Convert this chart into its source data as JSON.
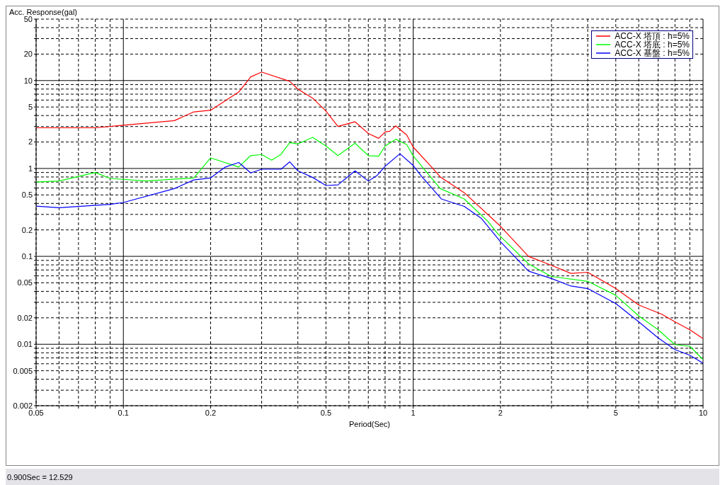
{
  "chart_data": {
    "type": "line",
    "xlabel": "Period(Sec)",
    "ylabel": "Acc. Response(gal)",
    "log": "xy",
    "grid": true,
    "legend": "top right",
    "xlim": [
      0.05,
      10
    ],
    "ylim": [
      0.002,
      50
    ],
    "xticks": [
      0.05,
      {
        "value": 0.06,
        "label": null
      },
      {
        "value": 0.07,
        "label": null
      },
      {
        "value": 0.08,
        "label": null
      },
      {
        "value": 0.09,
        "label": null
      },
      0.1,
      0.2,
      {
        "value": 0.3,
        "label": null
      },
      {
        "value": 0.4,
        "label": null
      },
      0.5,
      {
        "value": 0.6,
        "label": null
      },
      {
        "value": 0.7,
        "label": null
      },
      {
        "value": 0.8,
        "label": null
      },
      {
        "value": 0.9,
        "label": null
      },
      1,
      2,
      {
        "value": 3,
        "label": null
      },
      {
        "value": 4,
        "label": null
      },
      5,
      {
        "value": 6,
        "label": null
      },
      {
        "value": 7,
        "label": null
      },
      {
        "value": 8,
        "label": null
      },
      {
        "value": 9,
        "label": null
      },
      10
    ],
    "yticks": [
      0.002,
      {
        "value": 0.003,
        "label": null
      },
      {
        "value": 0.004,
        "label": null
      },
      0.005,
      {
        "value": 0.006,
        "label": null
      },
      {
        "value": 0.007,
        "label": null
      },
      {
        "value": 0.008,
        "label": null
      },
      {
        "value": 0.009,
        "label": null
      },
      0.01,
      0.02,
      {
        "value": 0.03,
        "label": null
      },
      {
        "value": 0.04,
        "label": null
      },
      0.05,
      {
        "value": 0.06,
        "label": null
      },
      {
        "value": 0.07,
        "label": null
      },
      {
        "value": 0.08,
        "label": null
      },
      {
        "value": 0.09,
        "label": null
      },
      0.1,
      0.2,
      {
        "value": 0.3,
        "label": null
      },
      {
        "value": 0.4,
        "label": null
      },
      0.5,
      {
        "value": 0.6,
        "label": null
      },
      {
        "value": 0.7,
        "label": null
      },
      {
        "value": 0.8,
        "label": null
      },
      {
        "value": 0.9,
        "label": null
      },
      1,
      2,
      {
        "value": 3,
        "label": null
      },
      {
        "value": 4,
        "label": null
      },
      5,
      {
        "value": 6,
        "label": null
      },
      {
        "value": 7,
        "label": null
      },
      {
        "value": 8,
        "label": null
      },
      {
        "value": 9,
        "label": null
      },
      10,
      20,
      {
        "value": 30,
        "label": null
      },
      {
        "value": 40,
        "label": null
      },
      50
    ],
    "annotations": [
      "0.900Sec = 12.529"
    ],
    "series": [
      {
        "name": "ACC-X 塔頂 : h=5%",
        "color": "#ff0000",
        "x": [
          0.05,
          0.08,
          0.1,
          0.15,
          0.175,
          0.2,
          0.25,
          0.275,
          0.3,
          0.375,
          0.4,
          0.45,
          0.5,
          0.55,
          0.63,
          0.7,
          0.76,
          0.8,
          0.83,
          0.87,
          0.95,
          1.0,
          1.16,
          1.24,
          1.5,
          2.0,
          2.5,
          3,
          3.5,
          4,
          5,
          6,
          7.2,
          8,
          9,
          10
        ],
        "values": [
          2.9,
          2.9,
          3.1,
          3.5,
          4.4,
          4.6,
          7.4,
          11,
          12.5,
          9.8,
          8.0,
          6.3,
          4.5,
          3.0,
          3.4,
          2.5,
          2.2,
          2.6,
          2.65,
          3.05,
          2.4,
          1.75,
          1.03,
          0.8,
          0.53,
          0.22,
          0.1,
          0.079,
          0.064,
          0.066,
          0.043,
          0.028,
          0.022,
          0.018,
          0.0146,
          0.0116
        ]
      },
      {
        "name": "ACC-X 塔底 : h=5%",
        "color": "#00ff00",
        "x": [
          0.05,
          0.06,
          0.08,
          0.09,
          0.12,
          0.175,
          0.2,
          0.25,
          0.275,
          0.3,
          0.325,
          0.35,
          0.375,
          0.4,
          0.45,
          0.5,
          0.55,
          0.63,
          0.7,
          0.76,
          0.8,
          0.87,
          0.95,
          1.0,
          1.07,
          1.24,
          1.5,
          1.81,
          1.96,
          2.5,
          3,
          4,
          5,
          6,
          7,
          8,
          9,
          10
        ],
        "values": [
          0.7,
          0.72,
          0.9,
          0.77,
          0.72,
          0.78,
          1.32,
          1.04,
          1.4,
          1.44,
          1.24,
          1.45,
          1.97,
          1.9,
          2.26,
          1.8,
          1.4,
          1.94,
          1.4,
          1.38,
          1.8,
          2.15,
          1.87,
          1.39,
          1.06,
          0.59,
          0.45,
          0.25,
          0.18,
          0.082,
          0.059,
          0.052,
          0.036,
          0.021,
          0.0146,
          0.0099,
          0.0095,
          0.0067
        ]
      },
      {
        "name": "ACC-X 基盤 : h=5%",
        "color": "#0000ff",
        "x": [
          0.05,
          0.06,
          0.09,
          0.1,
          0.15,
          0.175,
          0.2,
          0.225,
          0.25,
          0.275,
          0.3,
          0.35,
          0.375,
          0.4,
          0.45,
          0.5,
          0.55,
          0.63,
          0.7,
          0.75,
          0.8,
          0.9,
          1.0,
          1.07,
          1.25,
          1.5,
          1.72,
          2.0,
          2.5,
          3,
          3.5,
          4,
          5,
          6,
          7,
          8,
          9,
          10
        ],
        "values": [
          0.373,
          0.358,
          0.39,
          0.41,
          0.59,
          0.74,
          0.78,
          1.04,
          1.17,
          0.89,
          0.98,
          0.98,
          1.19,
          0.94,
          0.79,
          0.64,
          0.65,
          0.94,
          0.72,
          0.83,
          1.06,
          1.47,
          1.08,
          0.81,
          0.45,
          0.37,
          0.27,
          0.147,
          0.068,
          0.056,
          0.046,
          0.043,
          0.029,
          0.018,
          0.0118,
          0.0087,
          0.0075,
          0.0061
        ]
      }
    ]
  }
}
